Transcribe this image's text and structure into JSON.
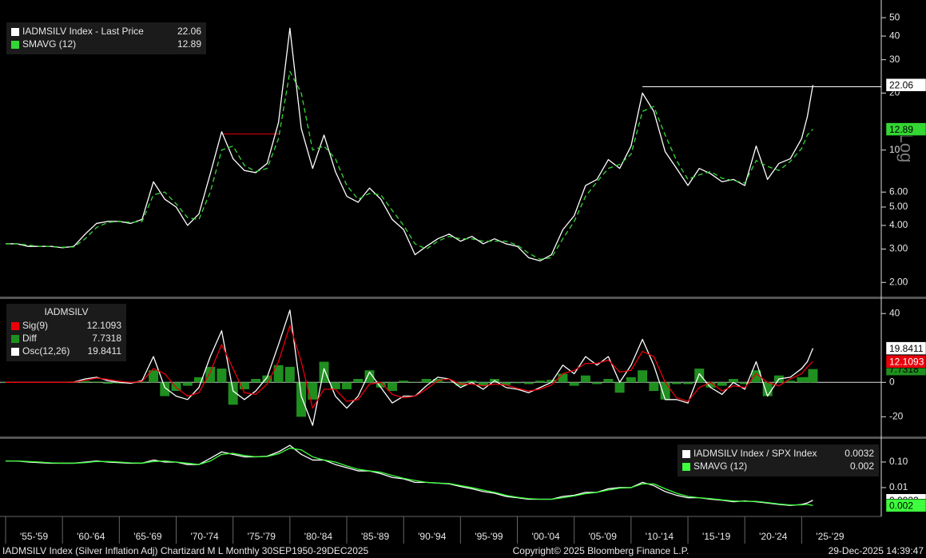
{
  "chart_data": [
    {
      "type": "line",
      "log": true,
      "scale_label": "Log",
      "xlim": [
        1955,
        2032
      ],
      "ylim": [
        1.7,
        62
      ],
      "yticks": [
        50,
        40,
        30,
        20,
        10,
        {
          "value": 6,
          "label": "6.00"
        },
        {
          "value": 5,
          "label": "5.00"
        },
        {
          "value": 4,
          "label": "4.00"
        },
        {
          "value": 3,
          "label": "3.00"
        },
        {
          "value": 2,
          "label": "2.00"
        }
      ],
      "x": [
        1955,
        1956,
        1957,
        1958,
        1959,
        1960,
        1961,
        1962,
        1963,
        1964,
        1965,
        1966,
        1967,
        1968,
        1969,
        1970,
        1971,
        1972,
        1973,
        1974,
        1975,
        1976,
        1977,
        1978,
        1979,
        1980,
        1981,
        1982,
        1983,
        1984,
        1985,
        1986,
        1987,
        1988,
        1989,
        1990,
        1991,
        1992,
        1993,
        1994,
        1995,
        1996,
        1997,
        1998,
        1999,
        2000,
        2001,
        2002,
        2003,
        2004,
        2005,
        2006,
        2007,
        2008,
        2009,
        2010,
        2011,
        2012,
        2013,
        2014,
        2015,
        2016,
        2017,
        2018,
        2019,
        2020,
        2021,
        2022,
        2023,
        2024,
        2025,
        2025.5,
        2025.99
      ],
      "series": [
        {
          "name": "IADMSILV Index - Last Price",
          "color": "#ffffff",
          "style": "solid",
          "label_color": "#000000",
          "values": [
            3.2,
            3.2,
            3.1,
            3.1,
            3.1,
            3.05,
            3.1,
            3.6,
            4.1,
            4.2,
            4.2,
            4.1,
            4.3,
            6.8,
            5.5,
            5.0,
            4.0,
            4.6,
            7.5,
            12.5,
            9.0,
            7.8,
            7.6,
            8.5,
            14,
            44,
            13,
            8,
            12,
            7.7,
            5.7,
            5.3,
            6.3,
            5.5,
            4.3,
            3.8,
            2.8,
            3.1,
            3.4,
            3.6,
            3.3,
            3.5,
            3.2,
            3.4,
            3.2,
            3.1,
            2.7,
            2.6,
            2.8,
            3.8,
            4.5,
            6.5,
            7,
            8.9,
            8,
            10.5,
            20,
            16,
            9.8,
            8,
            6.5,
            8,
            7.5,
            6.8,
            7,
            6.5,
            10.5,
            7,
            8.5,
            9,
            11.5,
            15,
            22.06
          ]
        },
        {
          "name": "SMAVG (12)",
          "color": "#33d633",
          "style": "dashed",
          "label_color": "#000000",
          "values": [
            3.2,
            3.2,
            3.15,
            3.1,
            3.1,
            3.07,
            3.08,
            3.4,
            3.9,
            4.15,
            4.2,
            4.15,
            4.2,
            5.8,
            6.0,
            5.2,
            4.4,
            4.3,
            6.0,
            10.0,
            10.5,
            8.3,
            7.7,
            8.0,
            11.5,
            26,
            20,
            10,
            10.5,
            9.0,
            6.5,
            5.5,
            5.9,
            5.8,
            4.8,
            4.0,
            3.2,
            3.0,
            3.3,
            3.5,
            3.4,
            3.4,
            3.3,
            3.3,
            3.3,
            3.15,
            2.85,
            2.65,
            2.7,
            3.4,
            4.2,
            5.7,
            6.8,
            8.0,
            8.4,
            9.5,
            16,
            17,
            12,
            8.8,
            7.0,
            7.4,
            7.7,
            7.1,
            6.9,
            6.7,
            8.8,
            8.2,
            7.8,
            8.7,
            10.2,
            12.0,
            12.89
          ]
        }
      ],
      "ref_lines": [
        {
          "x": [
            1973.9,
            1979
          ],
          "y": 12.15,
          "color": "#e8000b"
        },
        {
          "x": [
            2011,
            2032
          ],
          "y": 21.6,
          "color": "#ffffff"
        }
      ]
    },
    {
      "type": "line",
      "log": false,
      "zero_line": true,
      "legend_title": "IADMSILV",
      "xlim": [
        1955,
        2032
      ],
      "ylim": [
        -31,
        48
      ],
      "yticks": [
        40,
        0,
        -20
      ],
      "x": [
        1955,
        1956,
        1957,
        1958,
        1959,
        1960,
        1961,
        1962,
        1963,
        1964,
        1965,
        1966,
        1967,
        1968,
        1969,
        1970,
        1971,
        1972,
        1973,
        1974,
        1975,
        1976,
        1977,
        1978,
        1979,
        1980,
        1981,
        1982,
        1983,
        1984,
        1985,
        1986,
        1987,
        1988,
        1989,
        1990,
        1991,
        1992,
        1993,
        1994,
        1995,
        1996,
        1997,
        1998,
        1999,
        2000,
        2001,
        2002,
        2003,
        2004,
        2005,
        2006,
        2007,
        2008,
        2009,
        2010,
        2011,
        2012,
        2013,
        2014,
        2015,
        2016,
        2017,
        2018,
        2019,
        2020,
        2021,
        2022,
        2023,
        2024,
        2025,
        2025.5,
        2025.99
      ],
      "series": [
        {
          "name": "Diff",
          "color": "#1f8f1f",
          "style": "bar",
          "label_color": "#000000",
          "values": [
            0,
            0,
            0,
            0,
            0,
            0,
            0.1,
            0.8,
            0.5,
            -0.8,
            -0.6,
            -0.5,
            0.5,
            7,
            -8,
            -5,
            -2,
            3,
            9,
            8,
            -13,
            -4,
            2,
            4,
            10,
            9,
            -20,
            -10,
            12,
            -4,
            -4,
            2,
            7,
            -3,
            -5,
            1,
            0,
            2,
            2,
            0,
            -2,
            1,
            -2,
            2,
            -1.5,
            -0.5,
            -1,
            1,
            1.5,
            5,
            -2,
            4,
            -1,
            2,
            -6,
            3,
            7,
            -5,
            -10,
            -1,
            -1,
            8,
            -3,
            -2,
            2,
            -1,
            7,
            -8,
            4,
            1,
            3,
            3,
            7.7318
          ]
        },
        {
          "name": "Osc(12,26)",
          "color": "#ffffff",
          "style": "solid",
          "label_color": "#000000",
          "values": [
            0,
            0,
            0,
            0,
            0,
            0,
            0.2,
            2,
            3,
            1,
            0,
            -0.5,
            1,
            15,
            -3,
            -8,
            -10,
            -3,
            15,
            30,
            -5,
            -10,
            -5,
            3,
            22,
            42,
            -8,
            -25,
            8,
            -8,
            -15,
            -8,
            6,
            -3,
            -12,
            -8,
            -8,
            -2,
            3,
            2,
            -3,
            0,
            -4,
            1,
            -3,
            -4,
            -6,
            -3,
            0,
            10,
            5,
            15,
            10,
            15,
            0,
            10,
            25,
            10,
            -10,
            -10,
            -12,
            5,
            -3,
            -7,
            0,
            -4,
            12,
            -8,
            2,
            3,
            8,
            12,
            19.8411
          ]
        },
        {
          "name": "Sig(9)",
          "color": "#e8000b",
          "style": "solid",
          "label_color": "#ffffff",
          "values": [
            0,
            0,
            0,
            0,
            0,
            0,
            0.1,
            1.2,
            2.5,
            1.8,
            0.6,
            0,
            0.5,
            8,
            5,
            -3,
            -8,
            -6,
            6,
            22,
            8,
            -6,
            -7,
            -1,
            12,
            33,
            12,
            -15,
            -4,
            -4,
            -11,
            -10,
            -1,
            0,
            -7,
            -9,
            -8,
            -4,
            1,
            2,
            -1,
            -1,
            -2,
            -1,
            -1.5,
            -3.5,
            -5,
            -4,
            -1.5,
            5,
            7,
            11,
            11,
            13,
            6,
            7,
            18,
            15,
            0,
            -9,
            -11,
            -3,
            0,
            -5,
            -2,
            -3,
            5,
            0,
            -2,
            2,
            5,
            9,
            12.1093
          ]
        }
      ]
    },
    {
      "type": "line",
      "log": true,
      "xlim": [
        1955,
        2032
      ],
      "ylim": [
        0.0008,
        0.75
      ],
      "yticks": [
        {
          "value": 0.1,
          "label": "0.10"
        },
        0.01
      ],
      "xticks": [
        {
          "value": 1955,
          "label": "'55-'59"
        },
        {
          "value": 1960,
          "label": "'60-'64"
        },
        {
          "value": 1965,
          "label": "'65-'69"
        },
        {
          "value": 1970,
          "label": "'70-'74"
        },
        {
          "value": 1975,
          "label": "'75-'79"
        },
        {
          "value": 1980,
          "label": "'80-'84"
        },
        {
          "value": 1985,
          "label": "'85-'89"
        },
        {
          "value": 1990,
          "label": "'90-'94"
        },
        {
          "value": 1995,
          "label": "'95-'99"
        },
        {
          "value": 2000,
          "label": "'00-'04"
        },
        {
          "value": 2005,
          "label": "'05-'09"
        },
        {
          "value": 2010,
          "label": "'10-'14"
        },
        {
          "value": 2015,
          "label": "'15-'19"
        },
        {
          "value": 2020,
          "label": "'20-'24"
        },
        {
          "value": 2025,
          "label": "'25-'29"
        }
      ],
      "x": [
        1955,
        1956,
        1957,
        1958,
        1959,
        1960,
        1961,
        1962,
        1963,
        1964,
        1965,
        1966,
        1967,
        1968,
        1969,
        1970,
        1971,
        1972,
        1973,
        1974,
        1975,
        1976,
        1977,
        1978,
        1979,
        1980,
        1981,
        1982,
        1983,
        1984,
        1985,
        1986,
        1987,
        1988,
        1989,
        1990,
        1991,
        1992,
        1993,
        1994,
        1995,
        1996,
        1997,
        1998,
        1999,
        2000,
        2001,
        2002,
        2003,
        2004,
        2005,
        2006,
        2007,
        2008,
        2009,
        2010,
        2011,
        2012,
        2013,
        2014,
        2015,
        2016,
        2017,
        2018,
        2019,
        2020,
        2021,
        2022,
        2023,
        2024,
        2025,
        2025.5,
        2025.99
      ],
      "series": [
        {
          "name": "IADMSILV Index / SPX Index",
          "color": "#ffffff",
          "style": "solid",
          "label_color": "#000000",
          "values": [
            0.11,
            0.11,
            0.1,
            0.095,
            0.09,
            0.09,
            0.09,
            0.1,
            0.11,
            0.1,
            0.095,
            0.09,
            0.09,
            0.12,
            0.1,
            0.1,
            0.08,
            0.08,
            0.14,
            0.25,
            0.2,
            0.16,
            0.16,
            0.17,
            0.25,
            0.45,
            0.2,
            0.12,
            0.12,
            0.08,
            0.06,
            0.045,
            0.045,
            0.035,
            0.025,
            0.022,
            0.016,
            0.016,
            0.015,
            0.014,
            0.011,
            0.009,
            0.007,
            0.006,
            0.0045,
            0.004,
            0.0035,
            0.0035,
            0.0035,
            0.0045,
            0.005,
            0.0065,
            0.0065,
            0.009,
            0.01,
            0.01,
            0.016,
            0.012,
            0.007,
            0.005,
            0.004,
            0.004,
            0.0035,
            0.0032,
            0.0028,
            0.003,
            0.0028,
            0.0025,
            0.0022,
            0.002,
            0.0022,
            0.0025,
            0.0032
          ]
        },
        {
          "name": "SMAVG (12)",
          "color": "#3dff3d",
          "style": "solid",
          "label_color": "#000000",
          "values": [
            0.11,
            0.11,
            0.105,
            0.1,
            0.093,
            0.09,
            0.09,
            0.095,
            0.105,
            0.105,
            0.1,
            0.093,
            0.09,
            0.105,
            0.11,
            0.1,
            0.09,
            0.08,
            0.11,
            0.2,
            0.22,
            0.18,
            0.16,
            0.165,
            0.21,
            0.35,
            0.3,
            0.16,
            0.12,
            0.1,
            0.07,
            0.052,
            0.045,
            0.04,
            0.03,
            0.023,
            0.019,
            0.016,
            0.015,
            0.0145,
            0.012,
            0.01,
            0.008,
            0.0065,
            0.005,
            0.0042,
            0.0037,
            0.0035,
            0.0035,
            0.004,
            0.0047,
            0.0058,
            0.0065,
            0.008,
            0.0095,
            0.01,
            0.014,
            0.014,
            0.009,
            0.006,
            0.0045,
            0.004,
            0.0037,
            0.0033,
            0.003,
            0.0029,
            0.0029,
            0.0026,
            0.0023,
            0.0021,
            0.0021,
            0.0022,
            0.002
          ]
        }
      ]
    }
  ],
  "footer": {
    "left": "IADMSILV Index (Silver Inflation Adj) Chartizard M L Monthly 30SEP1950-29DEC2025",
    "center": "Copyright© 2025 Bloomberg Finance L.P.",
    "right": "29-Dec-2025 14:39:47"
  }
}
